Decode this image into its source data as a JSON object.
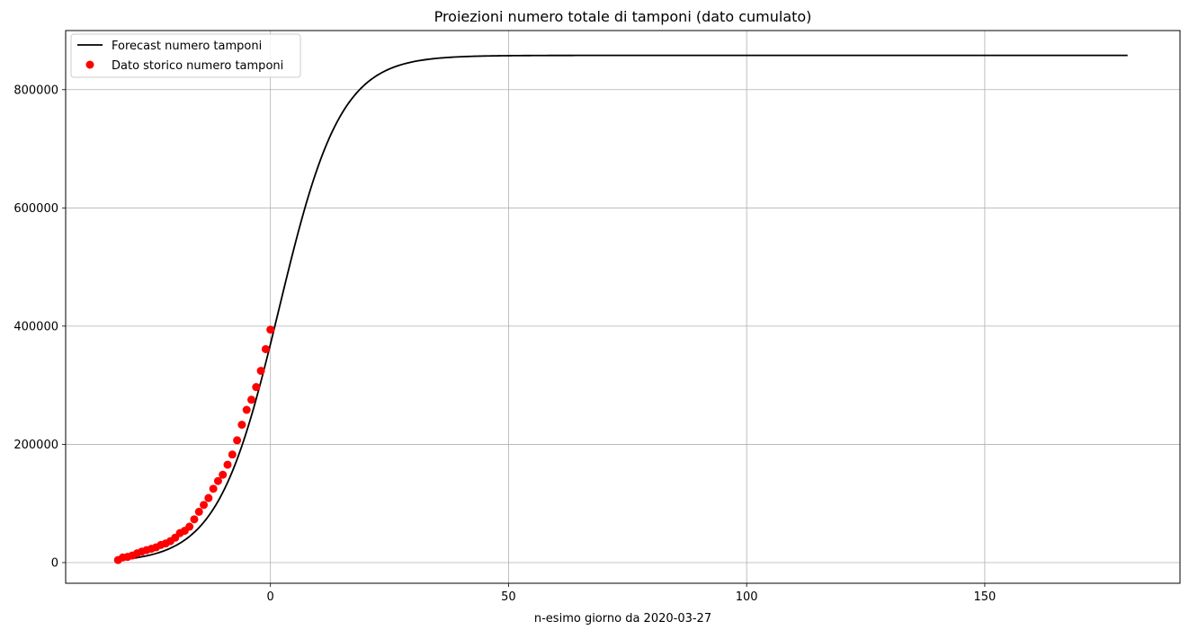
{
  "chart_data": {
    "type": "line",
    "title": "Proiezioni numero totale di tamponi (dato cumulato)",
    "xlabel": "n-esimo giorno da 2020-03-27",
    "ylabel": "",
    "xlim": [
      -43,
      191
    ],
    "ylim": [
      -35000,
      900000
    ],
    "grid": true,
    "legend_position": "top-left",
    "x_ticks": [
      0,
      50,
      100,
      150
    ],
    "x_tick_labels": [
      "0",
      "50",
      "100",
      "150"
    ],
    "y_ticks": [
      0,
      200000,
      400000,
      600000,
      800000
    ],
    "y_tick_labels": [
      "0",
      "200000",
      "400000",
      "600000",
      "800000"
    ],
    "series": [
      {
        "name": "Forecast numero tamponi",
        "style": "line",
        "color": "#000000",
        "model": "logistic",
        "x_range": [
          -32,
          180
        ],
        "params": {
          "L": 858000,
          "k": 0.155,
          "x0": 1.8
        }
      },
      {
        "name": "Dato storico numero tamponi",
        "style": "markers",
        "color": "#ff0000",
        "x": [
          -32,
          -31,
          -30,
          -29,
          -28,
          -27,
          -26,
          -25,
          -24,
          -23,
          -22,
          -21,
          -20,
          -19,
          -18,
          -17,
          -16,
          -15,
          -14,
          -13,
          -12,
          -11,
          -10,
          -9,
          -8,
          -7,
          -6,
          -5,
          -4,
          -3,
          -2,
          -1,
          0
        ],
        "y": [
          4324,
          8623,
          9587,
          12014,
          15695,
          18661,
          21127,
          23345,
          25856,
          29837,
          32362,
          36359,
          42062,
          49937,
          53826,
          60761,
          73154,
          86011,
          97488,
          109170,
          124899,
          137962,
          148657,
          165541,
          182777,
          206886,
          233222,
          258402,
          275468,
          296964,
          324445,
          361060,
          394079
        ]
      }
    ]
  }
}
